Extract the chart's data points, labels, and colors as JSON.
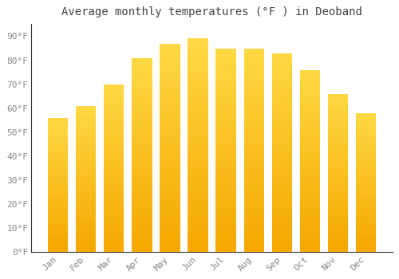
{
  "title": "Average monthly temperatures (°F ) in Deoband",
  "months": [
    "Jan",
    "Feb",
    "Mar",
    "Apr",
    "May",
    "Jun",
    "Jul",
    "Aug",
    "Sep",
    "Oct",
    "Nov",
    "Dec"
  ],
  "values": [
    56,
    61,
    70,
    81,
    87,
    89,
    85,
    85,
    83,
    76,
    66,
    58
  ],
  "bar_color_bottom": "#F5A800",
  "bar_color_top": "#FFD966",
  "background_color": "#FFFFFF",
  "plot_bg_color": "#FFFFFF",
  "ylim": [
    0,
    95
  ],
  "yticks": [
    0,
    10,
    20,
    30,
    40,
    50,
    60,
    70,
    80,
    90
  ],
  "ytick_labels": [
    "0°F",
    "10°F",
    "20°F",
    "30°F",
    "40°F",
    "50°F",
    "60°F",
    "70°F",
    "80°F",
    "90°F"
  ],
  "grid_color": "#E0E0E0",
  "title_fontsize": 10,
  "tick_fontsize": 8,
  "tick_color": "#888888",
  "title_color": "#444444"
}
